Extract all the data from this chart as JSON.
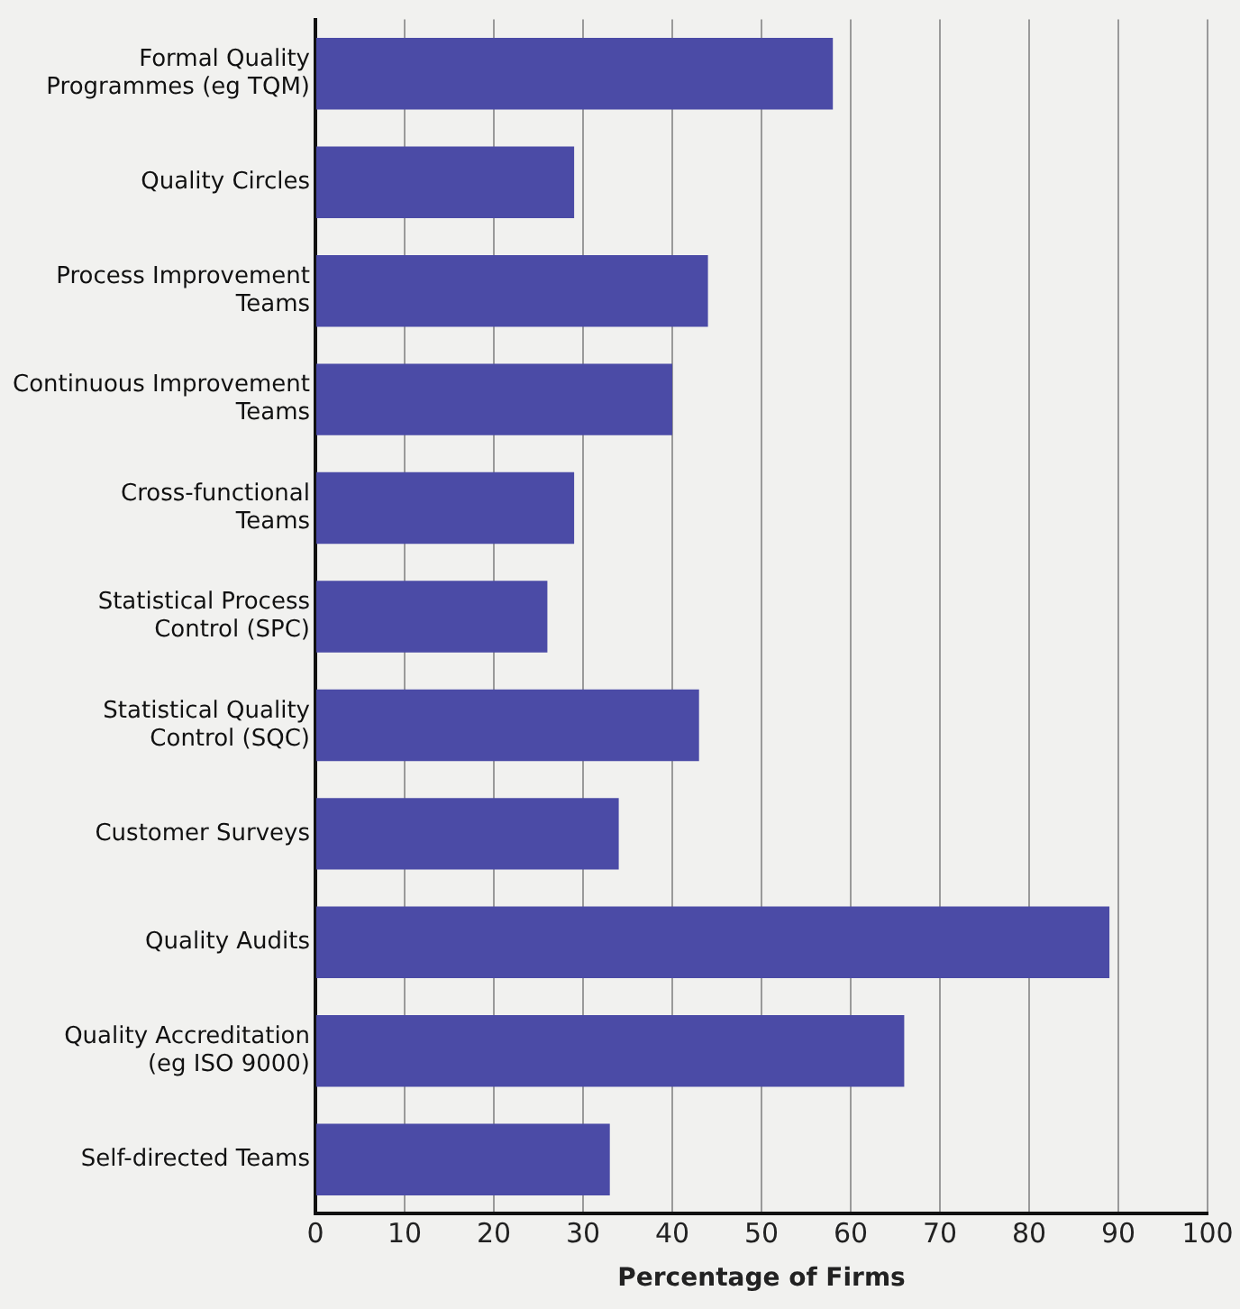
{
  "chart_data": {
    "type": "bar",
    "orientation": "horizontal",
    "xlabel": "Percentage of Firms",
    "categories": [
      "Formal Quality\nProgrammes (eg TQM)",
      "Quality Circles",
      "Process Improvement\nTeams",
      "Continuous Improvement\nTeams",
      "Cross-functional\nTeams",
      "Statistical Process\nControl (SPC)",
      "Statistical Quality\nControl (SQC)",
      "Customer Surveys",
      "Quality Audits",
      "Quality Accreditation\n(eg ISO 9000)",
      "Self-directed Teams"
    ],
    "values": [
      58,
      29,
      44,
      40,
      29,
      26,
      43,
      34,
      89,
      66,
      33
    ],
    "color": "#4b4ba6",
    "xlim": [
      0,
      100
    ],
    "xticks": [
      0,
      10,
      20,
      30,
      40,
      50,
      60,
      70,
      80,
      90,
      100
    ],
    "grid": "x",
    "legend": false
  }
}
